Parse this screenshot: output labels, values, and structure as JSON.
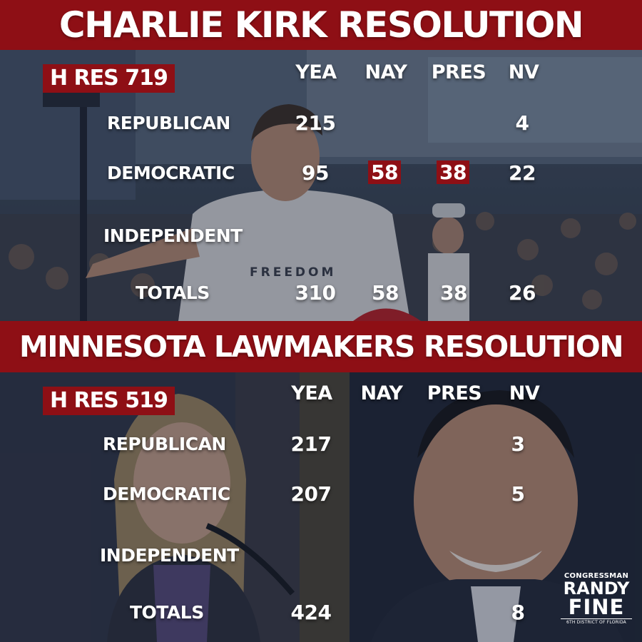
{
  "columns": [
    "YEA",
    "NAY",
    "PRES",
    "NV"
  ],
  "section1": {
    "title": "CHARLIE KIRK RESOLUTION",
    "bill": "H RES 719",
    "rows": [
      {
        "party": "REPUBLICAN",
        "yea": "215",
        "nay": "",
        "pres": "",
        "nv": "4"
      },
      {
        "party": "DEMOCRATIC",
        "yea": "95",
        "nay": "58",
        "pres": "38",
        "nv": "22"
      },
      {
        "party": "INDEPENDENT",
        "yea": "",
        "nay": "",
        "pres": "",
        "nv": ""
      },
      {
        "party": "TOTALS",
        "yea": "310",
        "nay": "58",
        "pres": "38",
        "nv": "26"
      }
    ],
    "photo_shirt_text": "FREEDOM"
  },
  "section2": {
    "title": "MINNESOTA LAWMAKERS RESOLUTION",
    "bill": "H RES 519",
    "rows": [
      {
        "party": "REPUBLICAN",
        "yea": "217",
        "nay": "",
        "pres": "",
        "nv": "3"
      },
      {
        "party": "DEMOCRATIC",
        "yea": "207",
        "nay": "",
        "pres": "",
        "nv": "5"
      },
      {
        "party": "INDEPENDENT",
        "yea": "",
        "nay": "",
        "pres": "",
        "nv": ""
      },
      {
        "party": "TOTALS",
        "yea": "424",
        "nay": "",
        "pres": "",
        "nv": "8"
      }
    ]
  },
  "logo": {
    "line1": "CONGRESSMAN",
    "line2": "RANDY",
    "line3": "FINE",
    "line4": "6TH DISTRICT OF FLORIDA"
  },
  "colors": {
    "accent_red": "#8e0f15",
    "text": "#ffffff",
    "background": "#1b2333"
  }
}
